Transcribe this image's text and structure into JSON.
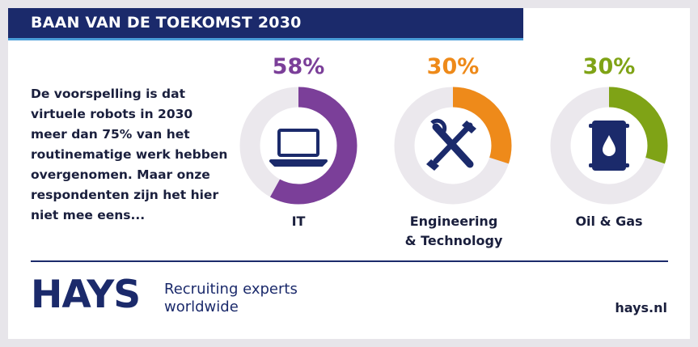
{
  "banner": {
    "title": "BAAN VAN DE TOEKOMST 2030"
  },
  "intro": {
    "lines": [
      "De voorspelling is dat",
      "virtuele robots in 2030",
      "meer dan 75% van het",
      "routinematige werk hebben",
      "overgenomen. Maar onze",
      "respondenten zijn het hier",
      "niet mee eens..."
    ]
  },
  "chart_data": {
    "type": "pie",
    "subtype": "donut-set",
    "track_color": "#ebe8ed",
    "items": [
      {
        "label_lines": [
          "IT"
        ],
        "value": 58,
        "value_label": "58%",
        "color": "#7b3f99",
        "icon": "laptop-icon"
      },
      {
        "label_lines": [
          "Engineering",
          "& Technology"
        ],
        "value": 30,
        "value_label": "30%",
        "color": "#ee8a1a",
        "icon": "wrench-screwdriver-icon"
      },
      {
        "label_lines": [
          "Oil & Gas"
        ],
        "value": 30,
        "value_label": "30%",
        "color": "#7fa316",
        "icon": "oil-barrel-icon"
      }
    ]
  },
  "footer": {
    "logo": "HAYS",
    "tagline_lines": [
      "Recruiting experts",
      "worldwide"
    ],
    "website": "hays.nl",
    "brand_color": "#1b2a6b"
  }
}
